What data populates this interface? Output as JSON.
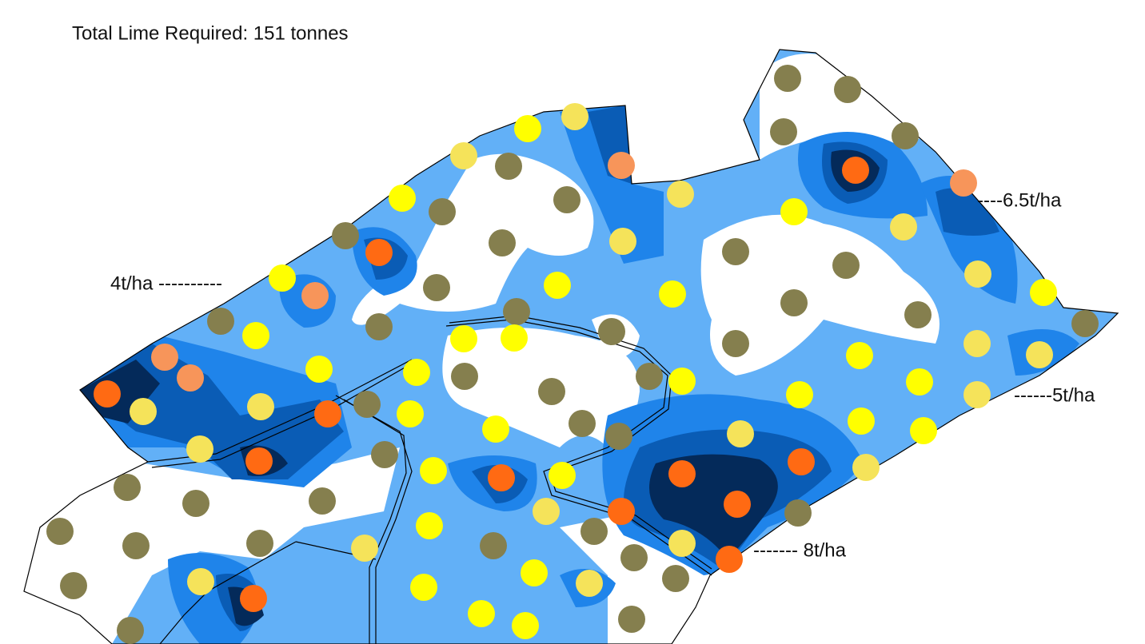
{
  "title": "Total Lime Required: 151 tonnes",
  "labels": {
    "rate_4": "4t/ha ----------",
    "rate_6_5": "----6.5t/ha",
    "rate_5": "------5t/ha",
    "rate_8": "------- 8t/ha"
  }
}
